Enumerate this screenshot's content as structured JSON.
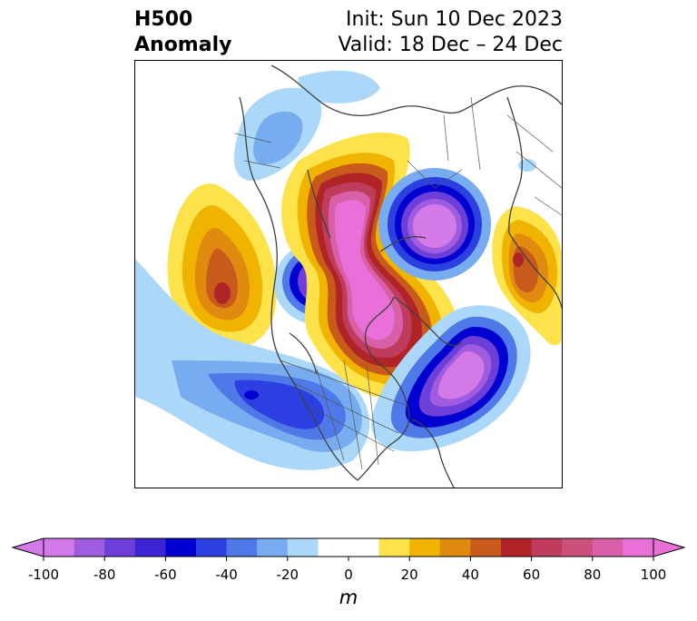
{
  "title": {
    "left_line1": "H500",
    "left_line2": "Anomaly",
    "right_line1": "Init: Sun 10 Dec 2023",
    "right_line2": "Valid: 18 Dec – 24 Dec"
  },
  "colorbar": {
    "unit": "m",
    "min": -100,
    "max": 100,
    "ticks": [
      "-100",
      "-80",
      "-60",
      "-40",
      "-20",
      "0",
      "20",
      "40",
      "60",
      "80",
      "100"
    ],
    "levels": [
      {
        "range": [
          -100,
          -90
        ],
        "color": "#d47ae8"
      },
      {
        "range": [
          -90,
          -80
        ],
        "color": "#a05ce0"
      },
      {
        "range": [
          -80,
          -70
        ],
        "color": "#6e3ed8"
      },
      {
        "range": [
          -70,
          -60
        ],
        "color": "#3c24d4"
      },
      {
        "range": [
          -60,
          -50
        ],
        "color": "#0000d0"
      },
      {
        "range": [
          -50,
          -40
        ],
        "color": "#2c3fe0"
      },
      {
        "range": [
          -40,
          -30
        ],
        "color": "#4f78e8"
      },
      {
        "range": [
          -30,
          -20
        ],
        "color": "#78acf0"
      },
      {
        "range": [
          -20,
          -10
        ],
        "color": "#abd8f8"
      },
      {
        "range": [
          -10,
          10
        ],
        "color": "#ffffff"
      },
      {
        "range": [
          10,
          20
        ],
        "color": "#fde24a"
      },
      {
        "range": [
          20,
          30
        ],
        "color": "#f0b400"
      },
      {
        "range": [
          30,
          40
        ],
        "color": "#e08a10"
      },
      {
        "range": [
          40,
          50
        ],
        "color": "#c85a1c"
      },
      {
        "range": [
          50,
          60
        ],
        "color": "#b02428"
      },
      {
        "range": [
          60,
          70
        ],
        "color": "#c03c5c"
      },
      {
        "range": [
          70,
          80
        ],
        "color": "#cc507c"
      },
      {
        "range": [
          80,
          90
        ],
        "color": "#d860a8"
      },
      {
        "range": [
          90,
          100
        ],
        "color": "#e870d8"
      }
    ],
    "extend_low_color": "#d47ae8",
    "extend_high_color": "#e870d8"
  },
  "map": {
    "projection": "north-polar-stereographic",
    "field": "500 hPa geopotential height anomaly",
    "features": [
      {
        "name": "positive-anomaly-north-pacific",
        "peak": 60
      },
      {
        "name": "negative-anomaly-alaska",
        "peak": -90
      },
      {
        "name": "positive-anomaly-arctic-greenland",
        "peak": 100
      },
      {
        "name": "negative-anomaly-siberia",
        "peak": -100
      },
      {
        "name": "positive-anomaly-eastern-europe",
        "peak": 60
      },
      {
        "name": "negative-anomaly-north-atlantic",
        "peak": -100
      },
      {
        "name": "negative-anomaly-eastern-pacific-west-us",
        "peak": -60
      },
      {
        "name": "negative-anomaly-east-asia",
        "peak": -30
      }
    ]
  }
}
